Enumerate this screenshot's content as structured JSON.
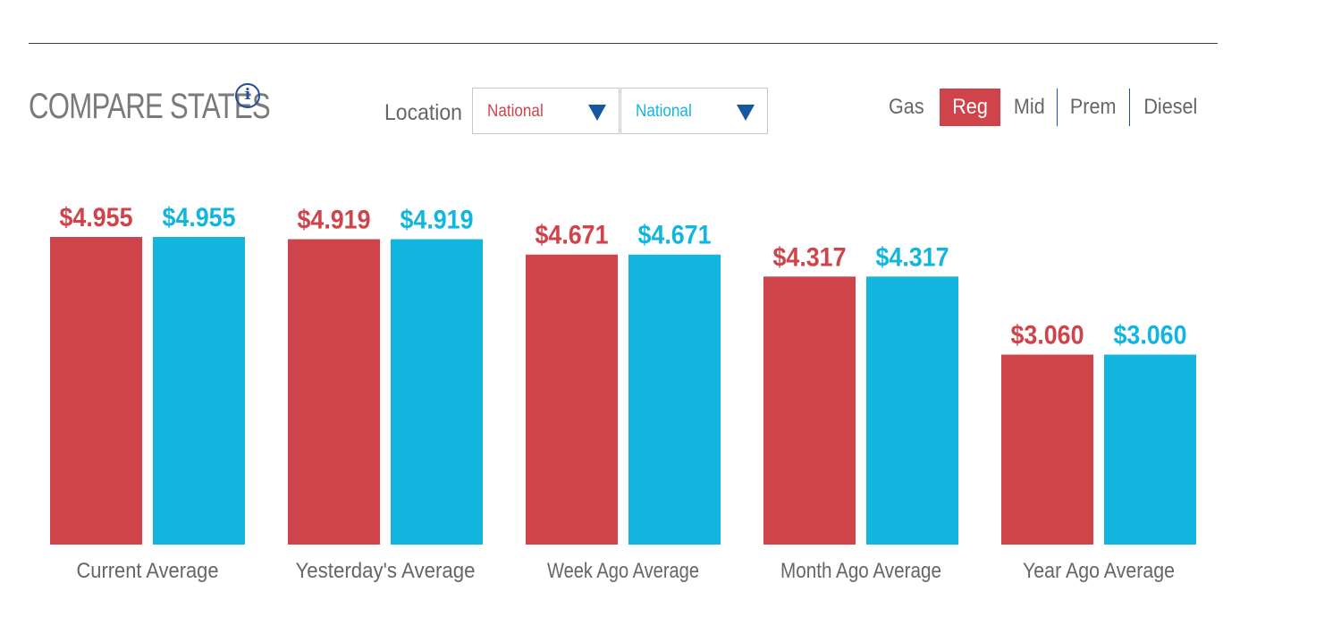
{
  "header": {
    "title": "COMPARE STATES",
    "info_icon": "info-icon"
  },
  "location": {
    "label": "Location",
    "select_a": "National",
    "select_b": "National"
  },
  "fuel": {
    "label": "Gas",
    "tabs": [
      "Reg",
      "Mid",
      "Prem",
      "Diesel"
    ],
    "active": "Reg"
  },
  "colors": {
    "series_a": "#cf434a",
    "series_b": "#11b5dd",
    "active_tab": "#cf434a",
    "arrow": "#1557a0"
  },
  "chart_data": {
    "type": "bar",
    "categories": [
      "Current Average",
      "Yesterday's Average",
      "Week Ago Average",
      "Month Ago Average",
      "Year Ago Average"
    ],
    "series": [
      {
        "name": "National",
        "values": [
          4.955,
          4.919,
          4.671,
          4.317,
          3.06
        ],
        "labels": [
          "$4.955",
          "$4.919",
          "$4.671",
          "$4.317",
          "$3.060"
        ]
      },
      {
        "name": "National",
        "values": [
          4.955,
          4.919,
          4.671,
          4.317,
          3.06
        ],
        "labels": [
          "$4.955",
          "$4.919",
          "$4.671",
          "$4.317",
          "$3.060"
        ]
      }
    ],
    "ylim": [
      0,
      5.4
    ],
    "grid": false,
    "legend": "none"
  }
}
